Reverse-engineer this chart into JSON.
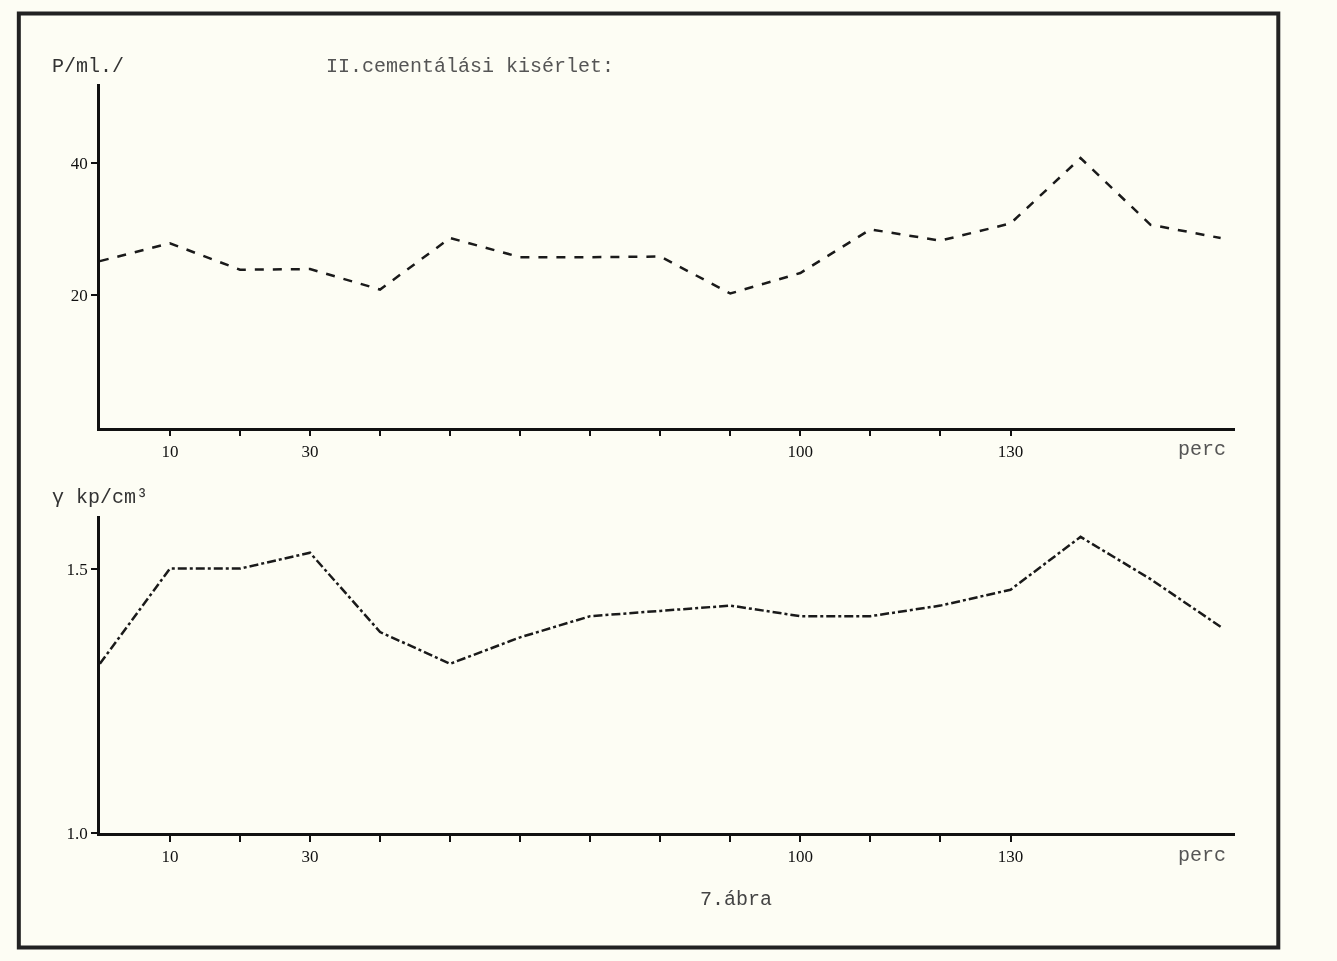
{
  "chart_data": [
    {
      "type": "line",
      "title": "II.cementálási kisérlet:",
      "ylabel": "P/ml./",
      "xlabel": "perc",
      "x": [
        0,
        10,
        20,
        30,
        40,
        50,
        60,
        70,
        80,
        90,
        100,
        110,
        120,
        130,
        140,
        150,
        160
      ],
      "values": [
        25.2,
        27.9,
        23.9,
        24,
        20.9,
        28.7,
        25.8,
        25.8,
        25.9,
        20.3,
        23.4,
        30,
        28.3,
        30.9,
        40.8,
        30.7,
        28.7
      ],
      "color": "#1a1a1a",
      "line_style": "dashed",
      "marker": "none",
      "grid": false,
      "xlim": [
        0,
        162
      ],
      "ylim": [
        0,
        52
      ],
      "xticks": [
        10,
        {
          "value": 20,
          "label": null
        },
        30,
        {
          "value": 40,
          "label": null
        },
        {
          "value": 50,
          "label": null
        },
        {
          "value": 60,
          "label": null
        },
        {
          "value": 70,
          "label": null
        },
        {
          "value": 80,
          "label": null
        },
        {
          "value": 90,
          "label": null
        },
        100,
        {
          "value": 110,
          "label": null
        },
        {
          "value": 120,
          "label": null
        },
        130
      ],
      "yticks": [
        20,
        40
      ]
    },
    {
      "type": "line",
      "ylabel": "γ kp/cm³",
      "xlabel": "perc",
      "annotations": [
        "7.ábra"
      ],
      "x": [
        0,
        10,
        20,
        30,
        40,
        50,
        60,
        70,
        80,
        90,
        100,
        110,
        120,
        130,
        140,
        150,
        160
      ],
      "values": [
        1.32,
        1.5,
        1.5,
        1.53,
        1.38,
        1.32,
        1.37,
        1.41,
        1.42,
        1.43,
        1.41,
        1.41,
        1.43,
        1.46,
        1.56,
        1.48,
        1.39
      ],
      "color": "#1a1a1a",
      "line_style": "dashdot",
      "marker": "none",
      "grid": false,
      "xlim": [
        0,
        162
      ],
      "ylim": [
        1.0,
        1.6
      ],
      "xticks": [
        10,
        {
          "value": 20,
          "label": null
        },
        30,
        {
          "value": 40,
          "label": null
        },
        {
          "value": 50,
          "label": null
        },
        {
          "value": 60,
          "label": null
        },
        {
          "value": 70,
          "label": null
        },
        {
          "value": 80,
          "label": null
        },
        {
          "value": 90,
          "label": null
        },
        100,
        {
          "value": 110,
          "label": null
        },
        {
          "value": 120,
          "label": null
        },
        130
      ],
      "yticks": [
        {
          "value": 1.0,
          "label": "1.0"
        },
        1.5
      ]
    }
  ]
}
